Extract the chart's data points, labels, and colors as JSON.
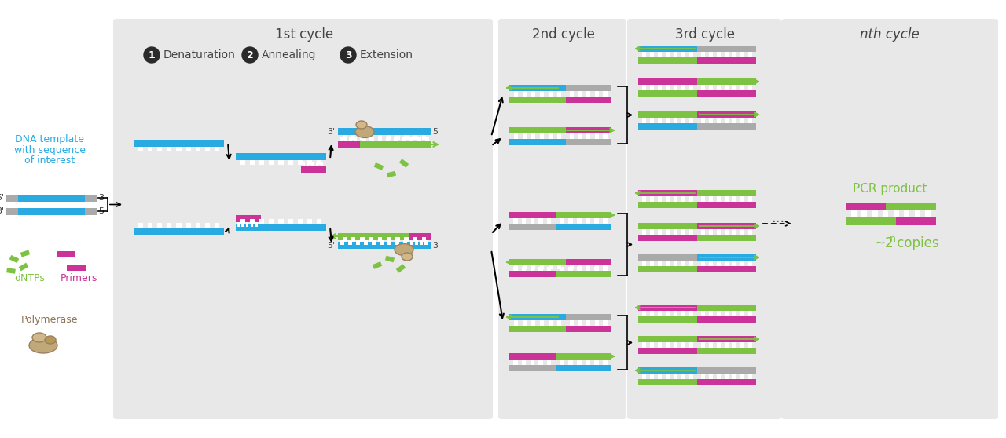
{
  "bg_color": "#f5f5f5",
  "white_bg": "#ffffff",
  "panel_color": "#e8e8e8",
  "cyan": "#29abe2",
  "gray": "#aaaaaa",
  "magenta": "#cc3399",
  "green": "#7dc242",
  "brown_light": "#c8b080",
  "brown_dark": "#8b7355",
  "text_dark": "#444444",
  "title_1st": "1st cycle",
  "title_2nd": "2nd cycle",
  "title_3rd": "3rd cycle",
  "title_nth": "nth cycle",
  "label_denaturation": "Denaturation",
  "label_annealing": "Annealing",
  "label_extension": "Extension",
  "label_dna_line1": "DNA template",
  "label_dna_line2": "with sequence",
  "label_dna_line3": "of interest",
  "label_dntps": "dNTPs",
  "label_primers": "Primers",
  "label_polymerase": "Polymerase",
  "label_pcr_product": "PCR product",
  "label_copies": "~2",
  "label_copies_n": "n",
  "label_copies_suffix": " copies"
}
